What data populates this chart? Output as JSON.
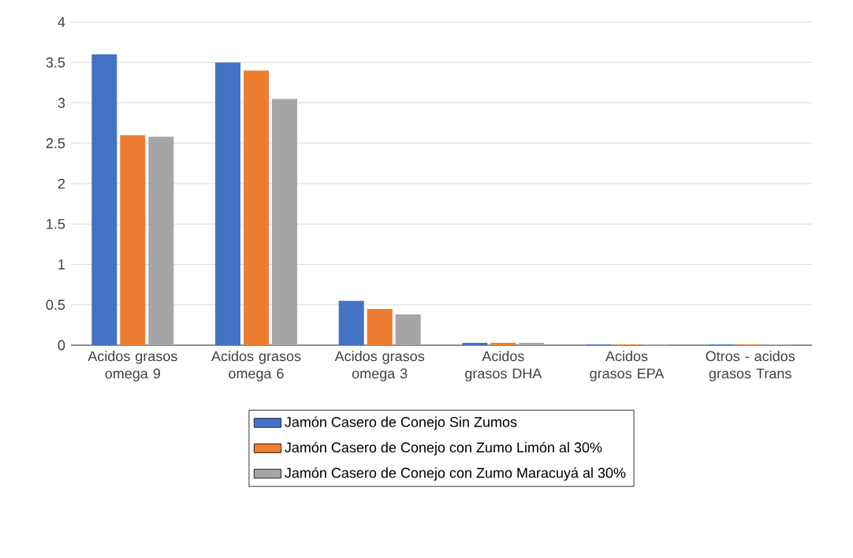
{
  "chart_data": {
    "type": "bar",
    "categories": [
      "Acidos grasos omega 9",
      "Acidos grasos omega 6",
      "Acidos grasos omega 3",
      "Acidos grasos DHA",
      "Acidos grasos EPA",
      "Otros - acidos grasos Trans"
    ],
    "series": [
      {
        "name": "Jamón Casero de Conejo Sin Zumos",
        "color": "#4472c4",
        "values": [
          3.6,
          3.5,
          0.55,
          0.03,
          0.01,
          0.01
        ]
      },
      {
        "name": "Jamón Casero de Conejo con Zumo  Limón al 30%",
        "color": "#ed7d31",
        "values": [
          2.6,
          3.4,
          0.45,
          0.03,
          0.01,
          0.01
        ]
      },
      {
        "name": "Jamón Casero de Conejo con Zumo  Maracuyá al 30%",
        "color": "#a5a5a5",
        "values": [
          2.58,
          3.05,
          0.38,
          0.03,
          0.01,
          0.01
        ]
      }
    ],
    "ylim": [
      0,
      4
    ],
    "yticks": [
      0,
      0.5,
      1,
      1.5,
      2,
      2.5,
      3,
      3.5,
      4
    ],
    "grid": "y",
    "legend": "bottom"
  }
}
